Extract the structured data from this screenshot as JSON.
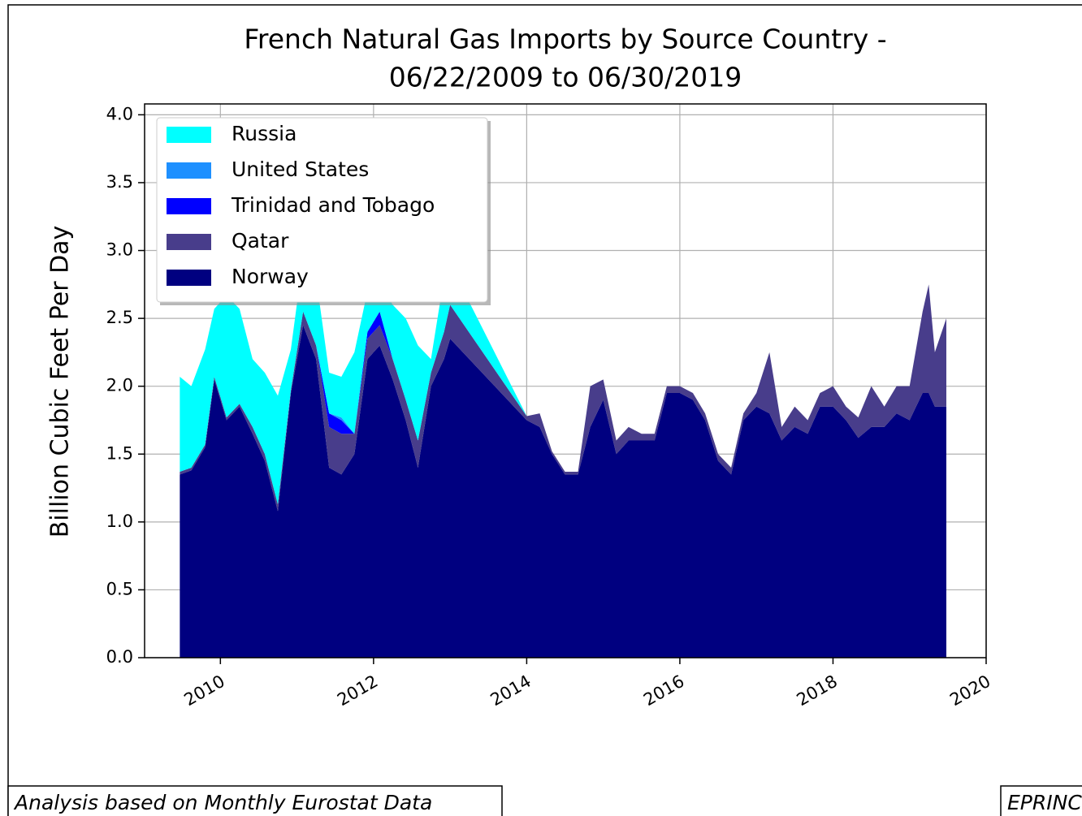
{
  "chart_data": {
    "type": "stacked_area",
    "title": "French Natural Gas Imports by Source Country -",
    "subtitle": "06/22/2009 to 06/30/2019",
    "ylabel": "Billion Cubic Feet Per Day",
    "footer_left": "Analysis based on Monthly Eurostat Data",
    "footer_right": "EPRINC",
    "x": [
      2009.47,
      2009.62,
      2009.8,
      2009.92,
      2010.08,
      2010.25,
      2010.42,
      2010.58,
      2010.75,
      2010.92,
      2011.08,
      2011.25,
      2011.42,
      2011.58,
      2011.75,
      2011.92,
      2012.08,
      2012.25,
      2012.42,
      2012.58,
      2012.75,
      2012.92,
      2013.0,
      2014.0,
      2014.17,
      2014.33,
      2014.5,
      2014.67,
      2014.83,
      2015.0,
      2015.17,
      2015.33,
      2015.5,
      2015.67,
      2015.83,
      2016.0,
      2016.17,
      2016.33,
      2016.5,
      2016.67,
      2016.83,
      2017.0,
      2017.17,
      2017.33,
      2017.5,
      2017.67,
      2017.83,
      2018.0,
      2018.17,
      2018.33,
      2018.5,
      2018.67,
      2018.83,
      2019.0,
      2019.17,
      2019.25,
      2019.33,
      2019.48
    ],
    "series": [
      {
        "name": "Russia",
        "color": "#00ffff",
        "values": [
          0.7,
          0.6,
          0.7,
          0.5,
          0.9,
          0.7,
          0.5,
          0.6,
          0.8,
          0.3,
          0.4,
          0.5,
          0.3,
          0.3,
          0.6,
          0.3,
          0.2,
          0.4,
          0.6,
          0.7,
          0.1,
          0.4,
          0.3,
          0,
          0,
          0,
          0,
          0,
          0,
          0,
          0,
          0,
          0,
          0,
          0,
          0,
          0,
          0,
          0,
          0,
          0,
          0,
          0,
          0,
          0,
          0,
          0,
          0,
          0,
          0,
          0,
          0,
          0,
          0,
          0,
          0,
          0,
          0
        ]
      },
      {
        "name": "United States",
        "color": "#1e90ff",
        "values": [
          0,
          0,
          0,
          0,
          0,
          0,
          0,
          0,
          0,
          0,
          0,
          0,
          0,
          0.02,
          0,
          0,
          0,
          0,
          0,
          0,
          0,
          0,
          0,
          0,
          0,
          0,
          0,
          0,
          0,
          0,
          0,
          0,
          0,
          0,
          0,
          0,
          0,
          0,
          0,
          0,
          0,
          0,
          0,
          0,
          0,
          0,
          0,
          0,
          0,
          0,
          0,
          0,
          0,
          0,
          0,
          0,
          0,
          0
        ]
      },
      {
        "name": "Trinidad and Tobago",
        "color": "#0000ff",
        "values": [
          0,
          0,
          0,
          0,
          0,
          0,
          0,
          0,
          0,
          0,
          0,
          0,
          0.1,
          0.1,
          0,
          0.05,
          0.1,
          0,
          0,
          0,
          0,
          0,
          0,
          0,
          0,
          0,
          0,
          0,
          0,
          0,
          0,
          0,
          0,
          0,
          0,
          0,
          0,
          0,
          0,
          0,
          0,
          0,
          0,
          0,
          0,
          0,
          0,
          0,
          0,
          0,
          0,
          0,
          0,
          0,
          0,
          0,
          0,
          0
        ]
      },
      {
        "name": "Qatar",
        "color": "#483d8b",
        "values": [
          0.02,
          0.02,
          0.02,
          0.02,
          0.02,
          0.02,
          0.05,
          0.05,
          0.05,
          0.02,
          0.1,
          0.1,
          0.3,
          0.3,
          0.15,
          0.15,
          0.15,
          0.15,
          0.15,
          0.2,
          0.1,
          0.2,
          0.25,
          0.03,
          0.1,
          0.02,
          0.02,
          0.02,
          0.3,
          0.15,
          0.1,
          0.1,
          0.05,
          0.05,
          0.05,
          0.05,
          0.05,
          0.05,
          0.05,
          0.05,
          0.05,
          0.1,
          0.45,
          0.1,
          0.15,
          0.1,
          0.1,
          0.15,
          0.1,
          0.15,
          0.3,
          0.15,
          0.2,
          0.25,
          0.6,
          0.8,
          0.4,
          0.65
        ]
      },
      {
        "name": "Norway",
        "color": "#000080",
        "values": [
          1.35,
          1.38,
          1.55,
          2.05,
          1.75,
          1.85,
          1.65,
          1.45,
          1.08,
          1.95,
          2.45,
          2.2,
          1.4,
          1.35,
          1.5,
          2.2,
          2.3,
          2.05,
          1.75,
          1.4,
          2.0,
          2.2,
          2.35,
          1.75,
          1.7,
          1.5,
          1.35,
          1.35,
          1.7,
          1.9,
          1.5,
          1.6,
          1.6,
          1.6,
          1.95,
          1.95,
          1.9,
          1.75,
          1.45,
          1.35,
          1.75,
          1.85,
          1.8,
          1.6,
          1.7,
          1.65,
          1.85,
          1.85,
          1.75,
          1.62,
          1.7,
          1.7,
          1.8,
          1.75,
          1.95,
          1.95,
          1.85,
          1.85
        ]
      }
    ],
    "xlim": [
      2009.01,
      2020.0
    ],
    "xticks": [
      2010,
      2012,
      2014,
      2016,
      2018,
      2020
    ],
    "ylim": [
      0,
      4.08
    ],
    "yticks": [
      {
        "value": 0,
        "label": "0.0"
      },
      {
        "value": 0.5,
        "label": "0.5"
      },
      {
        "value": 1.0,
        "label": "1.0"
      },
      {
        "value": 1.5,
        "label": "1.5"
      },
      {
        "value": 2.0,
        "label": "2.0"
      },
      {
        "value": 2.5,
        "label": "2.5"
      },
      {
        "value": 3.0,
        "label": "3.0"
      },
      {
        "value": 3.5,
        "label": "3.5"
      },
      {
        "value": 4.0,
        "label": "4.0"
      }
    ],
    "grid": true,
    "legend": "upper left"
  }
}
